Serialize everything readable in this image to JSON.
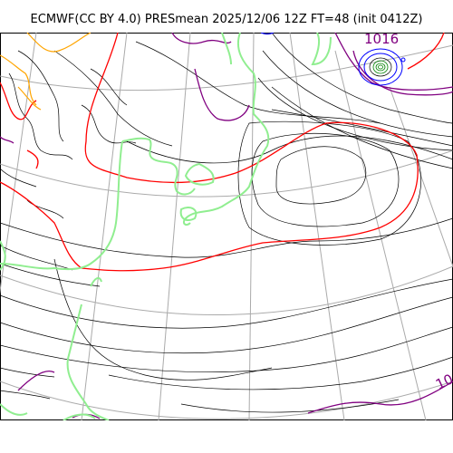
{
  "title": "ECMWF(CC BY 4.0) PRESmean 2025/12/06 12Z FT=48 (init 0412Z)",
  "contour_labels": {
    "top_right": "1016",
    "bottom_right": "10"
  },
  "colors": {
    "isobar": "#000000",
    "isobar_1016": "#ff0000",
    "coast": "#90ee90",
    "isobar_purple": "#800080",
    "low_center": "#0000ff",
    "grid": "#aaaaaa",
    "high_ridge": "#ffa500"
  }
}
